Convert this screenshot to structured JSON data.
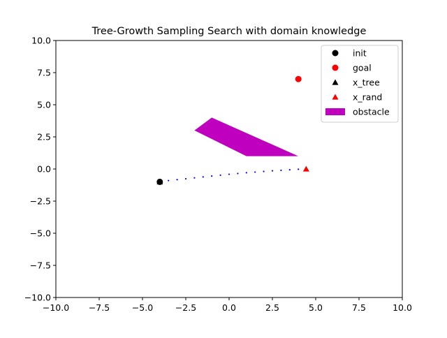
{
  "chart_data": {
    "type": "scatter",
    "title": "Tree-Growth Sampling Search with domain knowledge",
    "xlabel": "",
    "ylabel": "",
    "xlim": [
      -10,
      10
    ],
    "ylim": [
      -10,
      10
    ],
    "x_ticks": [
      -10,
      -7.5,
      -5,
      -2.5,
      0,
      2.5,
      5,
      7.5,
      10
    ],
    "y_ticks": [
      -10,
      -7.5,
      -5,
      -2.5,
      0,
      2.5,
      5,
      7.5,
      10
    ],
    "x_tick_labels": [
      "−10.0",
      "−7.5",
      "−5.0",
      "−2.5",
      "0.0",
      "2.5",
      "5.0",
      "7.5",
      "10.0"
    ],
    "y_tick_labels": [
      "−10.0",
      "−7.5",
      "−5.0",
      "−2.5",
      "0.0",
      "2.5",
      "5.0",
      "7.5",
      "10.0"
    ],
    "grid": false,
    "legend_position": "top-right",
    "legend": [
      {
        "label": "init",
        "marker": "circle",
        "color": "#000000"
      },
      {
        "label": "goal",
        "marker": "circle",
        "color": "#ff0000"
      },
      {
        "label": "x_tree",
        "marker": "triangle",
        "color": "#000000"
      },
      {
        "label": "x_rand",
        "marker": "triangle",
        "color": "#ff0000"
      },
      {
        "label": "obstacle",
        "marker": "patch",
        "color": "#bf00bf"
      }
    ],
    "init": {
      "x": -4,
      "y": -1
    },
    "goal": {
      "x": 4,
      "y": 7
    },
    "x_tree": [
      {
        "x": -4,
        "y": -1
      }
    ],
    "x_rand": [
      {
        "x": 4.45,
        "y": 0
      }
    ],
    "obstacle": {
      "color": "#bf00bf",
      "points": [
        [
          -2,
          3
        ],
        [
          -1,
          4
        ],
        [
          4,
          1
        ],
        [
          1,
          1
        ]
      ]
    },
    "path": {
      "color": "#0000ff",
      "points": [
        [
          -3.5,
          -0.9
        ],
        [
          -3.0,
          -0.83
        ],
        [
          -2.5,
          -0.76
        ],
        [
          -2.0,
          -0.69
        ],
        [
          -1.5,
          -0.62
        ],
        [
          -1.0,
          -0.55
        ],
        [
          -0.5,
          -0.48
        ],
        [
          0.0,
          -0.41
        ],
        [
          0.5,
          -0.35
        ],
        [
          1.0,
          -0.29
        ],
        [
          1.5,
          -0.24
        ],
        [
          2.0,
          -0.19
        ],
        [
          2.5,
          -0.14
        ],
        [
          3.0,
          -0.1
        ],
        [
          3.5,
          -0.06
        ],
        [
          4.0,
          -0.02
        ]
      ]
    }
  }
}
